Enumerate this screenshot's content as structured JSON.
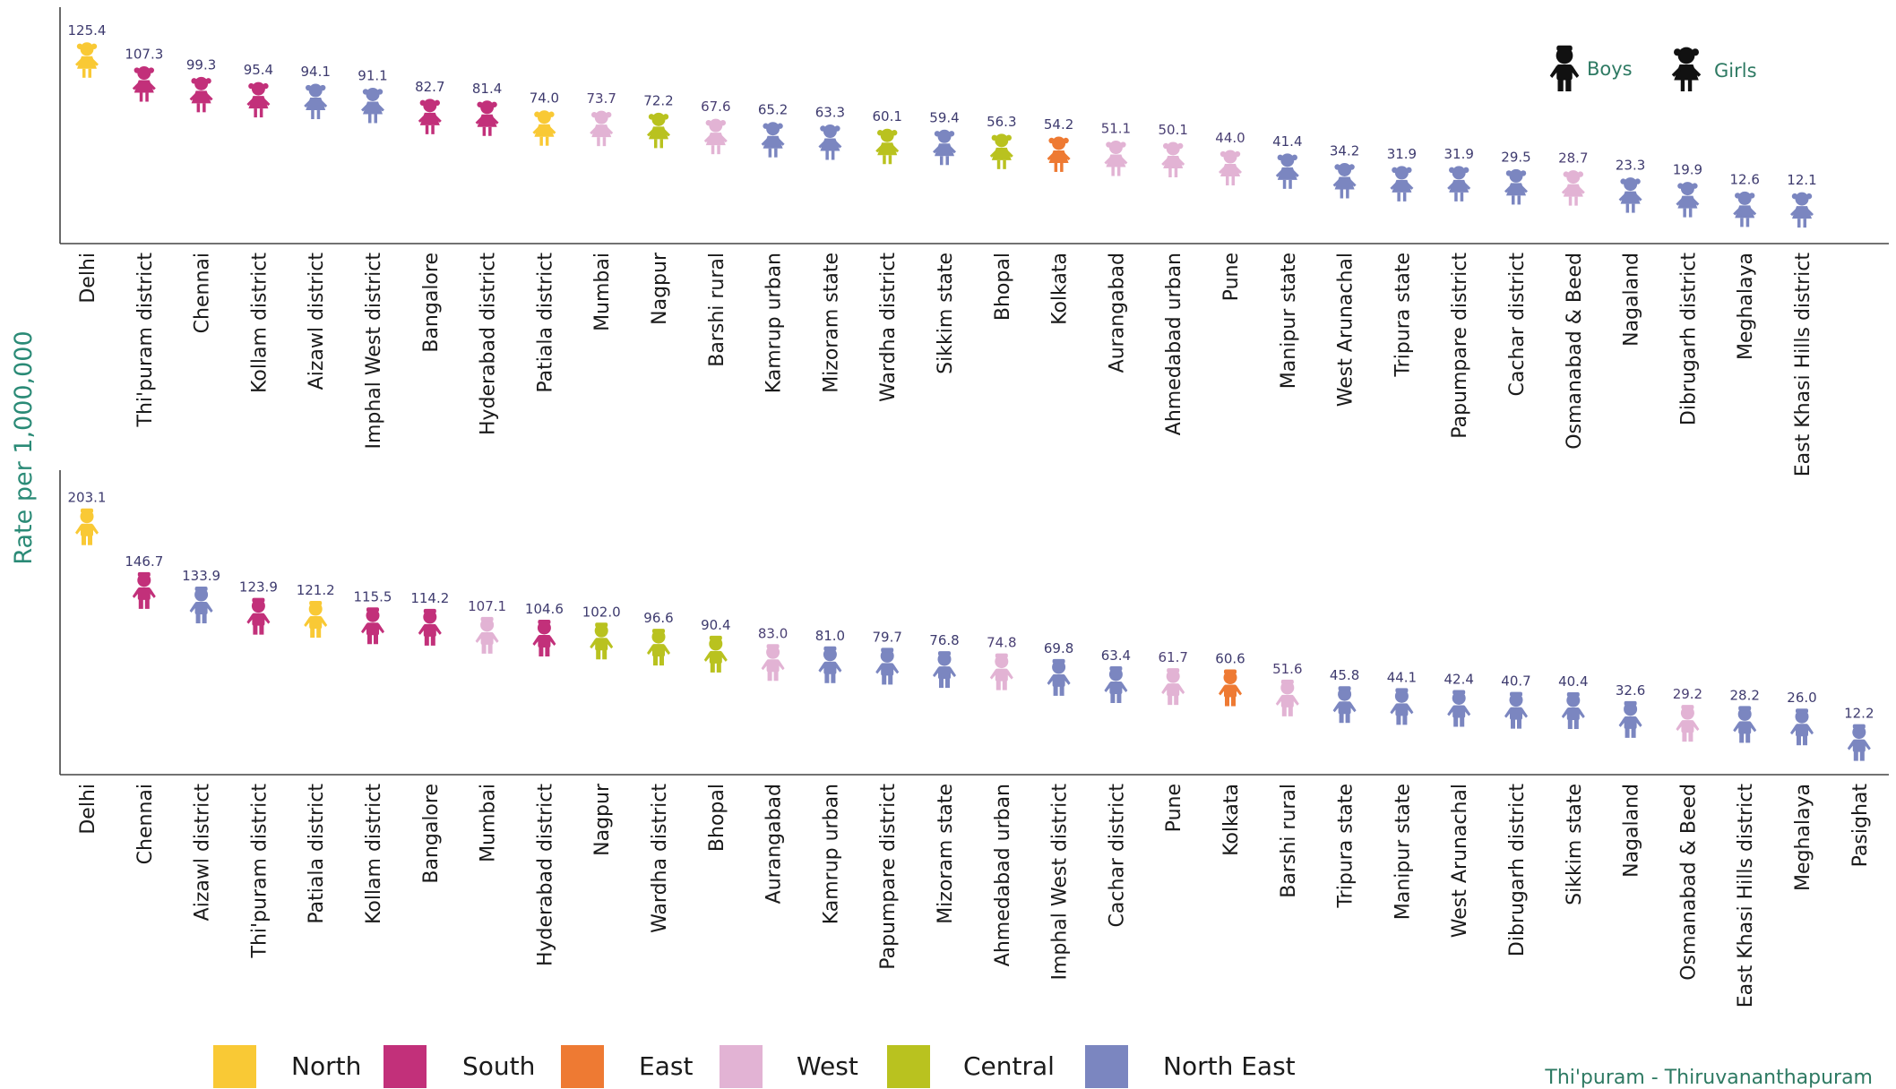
{
  "chart_data": [
    {
      "type": "scatter",
      "title": "",
      "ylabel": "Rate per 1,000,000",
      "categories": [
        "Delhi",
        "Thi'puram district",
        "Chennai",
        "Kollam district",
        "Aizawl district",
        "Imphal West district",
        "Bangalore",
        "Hyderabad district",
        "Patiala district",
        "Mumbai",
        "Nagpur",
        "Barshi rural",
        "Kamrup urban",
        "Mizoram state",
        "Wardha district",
        "Sikkim state",
        "Bhopal",
        "Kolkata",
        "Aurangabad",
        "Ahmedabad urban",
        "Pune",
        "Manipur state",
        "West Arunachal",
        "Tripura state",
        "Papumpare district",
        "Cachar district",
        "Osmanabad & Beed",
        "Nagaland",
        "Dibrugarh district",
        "Meghalaya",
        "East Khasi Hills district"
      ],
      "values": [
        125.4,
        107.3,
        99.3,
        95.4,
        94.1,
        91.1,
        82.7,
        81.4,
        74.0,
        73.7,
        72.2,
        67.6,
        65.2,
        63.3,
        60.1,
        59.4,
        56.3,
        54.2,
        51.1,
        50.1,
        44.0,
        41.4,
        34.2,
        31.9,
        31.9,
        29.5,
        28.7,
        23.3,
        19.9,
        12.6,
        12.1
      ],
      "value_labels": [
        "125.4",
        "107.3",
        "99.3",
        "95.4",
        "94.1",
        "91.1",
        "82.7",
        "81.4",
        "74.0",
        "73.7",
        "72.2",
        "67.6",
        "65.2",
        "63.3",
        "60.1",
        "59.4",
        "56.3",
        "54.2",
        "51.1",
        "50.1",
        "44.0",
        "41.4",
        "34.2",
        "31.9",
        "31.9",
        "29.5",
        "28.7",
        "23.3",
        "19.9",
        "12.6",
        "12.1"
      ],
      "regions": [
        "North",
        "South",
        "South",
        "South",
        "North East",
        "North East",
        "South",
        "South",
        "North",
        "West",
        "Central",
        "West",
        "North East",
        "North East",
        "Central",
        "North East",
        "Central",
        "East",
        "West",
        "West",
        "West",
        "North East",
        "North East",
        "North East",
        "North East",
        "North East",
        "West",
        "North East",
        "North East",
        "North East",
        "North East"
      ],
      "ylim": [
        0,
        130
      ],
      "marker": "girl-icon"
    },
    {
      "type": "scatter",
      "title": "",
      "categories": [
        "Delhi",
        "Chennai",
        "Aizawl district",
        "Thi'puram district",
        "Patiala district",
        "Kollam district",
        "Bangalore",
        "Mumbai",
        "Hyderabad district",
        "Nagpur",
        "Wardha district",
        "Bhopal",
        "Aurangabad",
        "Kamrup urban",
        "Papumpare district",
        "Mizoram state",
        "Ahmedabad urban",
        "Imphal West district",
        "Cachar district",
        "Pune",
        "Kolkata",
        "Barshi rural",
        "Tripura state",
        "Manipur state",
        "West Arunachal",
        "Dibrugarh district",
        "Sikkim state",
        "Nagaland",
        "Osmanabad & Beed",
        "East Khasi Hills district",
        "Meghalaya",
        "Pasighat"
      ],
      "values": [
        203.1,
        146.7,
        133.9,
        123.9,
        121.2,
        115.5,
        114.2,
        107.1,
        104.6,
        102.0,
        96.6,
        90.4,
        83.0,
        81.0,
        79.7,
        76.8,
        74.8,
        69.8,
        63.4,
        61.7,
        60.6,
        51.6,
        45.8,
        44.1,
        42.4,
        40.7,
        40.4,
        32.6,
        29.2,
        28.2,
        26.0,
        12.2
      ],
      "value_labels": [
        "203.1",
        "146.7",
        "133.9",
        "123.9",
        "121.2",
        "115.5",
        "114.2",
        "107.1",
        "104.6",
        "102.0",
        "96.6",
        "90.4",
        "83.0",
        "81.0",
        "79.7",
        "76.8",
        "74.8",
        "69.8",
        "63.4",
        "61.7",
        "60.6",
        "51.6",
        "45.8",
        "44.1",
        "42.4",
        "40.7",
        "40.4",
        "32.6",
        "29.2",
        "28.2",
        "26.0",
        "12.2"
      ],
      "regions": [
        "North",
        "South",
        "North East",
        "South",
        "North",
        "South",
        "South",
        "West",
        "South",
        "Central",
        "Central",
        "Central",
        "West",
        "North East",
        "North East",
        "North East",
        "West",
        "North East",
        "North East",
        "West",
        "East",
        "West",
        "North East",
        "North East",
        "North East",
        "North East",
        "North East",
        "North East",
        "West",
        "North East",
        "North East",
        "North East"
      ],
      "ylim": [
        0,
        210
      ],
      "marker": "boy-icon"
    }
  ],
  "legend": [
    {
      "label": "North",
      "color": "#f9c935"
    },
    {
      "label": "South",
      "color": "#c2307a"
    },
    {
      "label": "East",
      "color": "#ee7a33"
    },
    {
      "label": "West",
      "color": "#e2b3d4"
    },
    {
      "label": "Central",
      "color": "#b9c21f"
    },
    {
      "label": "North East",
      "color": "#7b86c0"
    }
  ],
  "gender_legend": {
    "boys": "Boys",
    "girls": "Girls"
  },
  "footnote": "Thi'puram - Thiruvananthapuram"
}
